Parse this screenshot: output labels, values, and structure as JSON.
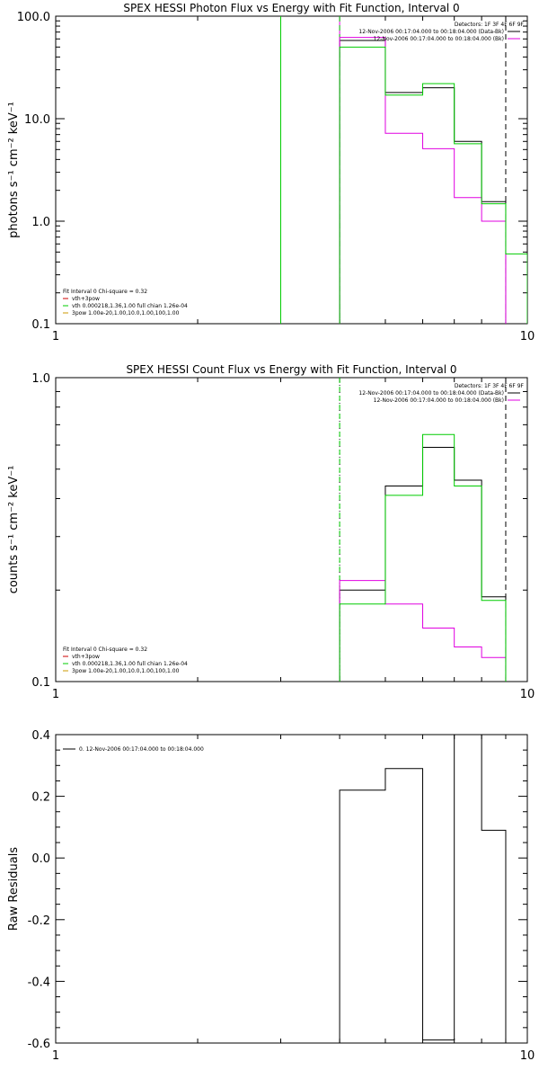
{
  "chart_data": [
    {
      "id": "photon",
      "type": "line",
      "title": "SPEX HESSI Photon Flux vs Energy with Fit Function, Interval 0",
      "ylabel": "photons s⁻¹ cm⁻² keV⁻¹",
      "xscale": "log",
      "yscale": "log",
      "xlim": [
        1,
        10
      ],
      "ylim": [
        0.1,
        100
      ],
      "xtick_labels": [
        {
          "v": 1,
          "t": "1"
        },
        {
          "v": 10,
          "t": "10"
        }
      ],
      "ytick_labels": [
        {
          "v": 0.1,
          "t": "0.1"
        },
        {
          "v": 1,
          "t": "1.0"
        },
        {
          "v": 10,
          "t": "10.0"
        },
        {
          "v": 100,
          "t": "100.0"
        }
      ],
      "edges": [
        4,
        5,
        6,
        7,
        8,
        9,
        10
      ],
      "series": [
        {
          "name": "12-Nov-2006 00:17:04.000 to 00:18:04.000 (Data-Bk)",
          "color": "#000000",
          "style": "solid",
          "values": [
            58,
            18,
            20,
            6,
            1.55,
            null
          ]
        },
        {
          "name": "12-Nov-2006 00:17:04.000 to 00:18:04.000 (Bk)",
          "color": "#e000e0",
          "style": "solid",
          "values": [
            62,
            7.2,
            5.1,
            1.7,
            1.0,
            null
          ]
        },
        {
          "name": "",
          "color": "#00cc00",
          "style": "solid",
          "values": [
            50,
            17,
            22,
            5.7,
            1.48,
            0.48
          ]
        }
      ],
      "vlines": [
        {
          "x": 3,
          "color": "#00cc00",
          "style": "solid"
        },
        {
          "x": 4,
          "color": "#e000e0",
          "style": "solid"
        },
        {
          "x": 4,
          "color": "#00cc00",
          "style": "dashed"
        },
        {
          "x": 9,
          "color": "#000000",
          "style": "dashed"
        }
      ],
      "legend_top": {
        "placement": "top-right",
        "header": "Detectors: 1F 3F 4F 6F 9F",
        "items": [
          {
            "label": "12-Nov-2006 00:17:04.000 to 00:18:04.000 (Data-Bk)",
            "color": "#000000"
          },
          {
            "label": "12-Nov-2006 00:17:04.000 to 00:18:04.000 (Bk)",
            "color": "#e000e0"
          }
        ]
      },
      "legend_bottom": {
        "placement": "bottom-left",
        "header": "Fit Interval 0   Chi-square = 0.32",
        "items": [
          {
            "label": "vth+3pow",
            "color": "#cc0000"
          },
          {
            "label": "vth 0.000218,1.36,1.00  full chian 1.26e-04",
            "color": "#00cc00"
          },
          {
            "label": "3pow 1.00e-20,1.00,10.0,1.00,100,1.00",
            "color": "#cc9900"
          }
        ]
      }
    },
    {
      "id": "count",
      "type": "line",
      "title": "SPEX HESSI Count Flux vs Energy with Fit Function, Interval 0",
      "ylabel": "counts s⁻¹ cm⁻² keV⁻¹",
      "xscale": "log",
      "yscale": "log",
      "xlim": [
        1,
        10
      ],
      "ylim": [
        0.1,
        1.0
      ],
      "xtick_labels": [
        {
          "v": 1,
          "t": "1"
        },
        {
          "v": 10,
          "t": "10"
        }
      ],
      "ytick_labels": [
        {
          "v": 0.1,
          "t": "0.1"
        },
        {
          "v": 1,
          "t": "1.0"
        }
      ],
      "edges": [
        4,
        5,
        6,
        7,
        8,
        9
      ],
      "series": [
        {
          "name": "12-Nov-2006 00:17:04.000 to 00:18:04.000 (Data-Bk)",
          "color": "#000000",
          "style": "solid",
          "values": [
            0.2,
            0.44,
            0.59,
            0.46,
            0.19
          ]
        },
        {
          "name": "12-Nov-2006 00:17:04.000 to 00:18:04.000 (Bk)",
          "color": "#e000e0",
          "style": "solid",
          "values": [
            0.215,
            0.18,
            0.15,
            0.13,
            0.12
          ]
        },
        {
          "name": "",
          "color": "#00cc00",
          "style": "solid",
          "values": [
            0.18,
            0.41,
            0.65,
            0.44,
            0.185
          ]
        }
      ],
      "vlines": [
        {
          "x": 4,
          "color": "#000000",
          "style": "dotted"
        },
        {
          "x": 4,
          "color": "#00cc00",
          "style": "dashed"
        },
        {
          "x": 9,
          "color": "#000000",
          "style": "dashed"
        }
      ],
      "legend_top": {
        "placement": "top-right",
        "header": "Detectors: 1F 3F 4F 6F 9F",
        "items": [
          {
            "label": "12-Nov-2006 00:17:04.000 to 00:18:04.000 (Data-Bk)",
            "color": "#000000"
          },
          {
            "label": "12-Nov-2006 00:17:04.000 to 00:18:04.000 (Bk)",
            "color": "#e000e0"
          }
        ]
      },
      "legend_bottom": {
        "placement": "bottom-left",
        "header": "Fit Interval 0   Chi-square = 0.32",
        "items": [
          {
            "label": "vth+3pow",
            "color": "#cc0000"
          },
          {
            "label": "vth 0.000218,1.36,1.00  full chian 1.26e-04",
            "color": "#00cc00"
          },
          {
            "label": "3pow 1.00e-20,1.00,10.0,1.00,100,1.00",
            "color": "#cc9900"
          }
        ]
      }
    },
    {
      "id": "resid",
      "type": "line",
      "title": "",
      "ylabel": "Raw Residuals",
      "xscale": "log",
      "yscale": "linear",
      "xlim": [
        1,
        10
      ],
      "ylim": [
        -0.6,
        0.4
      ],
      "xtick_labels": [
        {
          "v": 1,
          "t": "1"
        },
        {
          "v": 10,
          "t": "10"
        }
      ],
      "ytick_labels": [
        {
          "v": 0.4,
          "t": "0.4"
        },
        {
          "v": 0.2,
          "t": "0.2"
        },
        {
          "v": 0,
          "t": "0.0"
        },
        {
          "v": -0.2,
          "t": "-0.2"
        },
        {
          "v": -0.4,
          "t": "-0.4"
        },
        {
          "v": -0.6,
          "t": "-0.6"
        }
      ],
      "edges": [
        4,
        5,
        6,
        7,
        8,
        9
      ],
      "series": [
        {
          "name": "0. 12-Nov-2006 00:17:04.000 to 00:18:04.000",
          "color": "#000000",
          "style": "solid",
          "values": [
            0.22,
            0.29,
            -0.59,
            0.4,
            0.09
          ]
        }
      ],
      "vlines": [],
      "legend_top": {
        "placement": "top-left",
        "header": "",
        "items": [
          {
            "label": "0. 12-Nov-2006 00:17:04.000 to 00:18:04.000",
            "color": "#000000"
          }
        ]
      },
      "legend_bottom": null
    }
  ]
}
